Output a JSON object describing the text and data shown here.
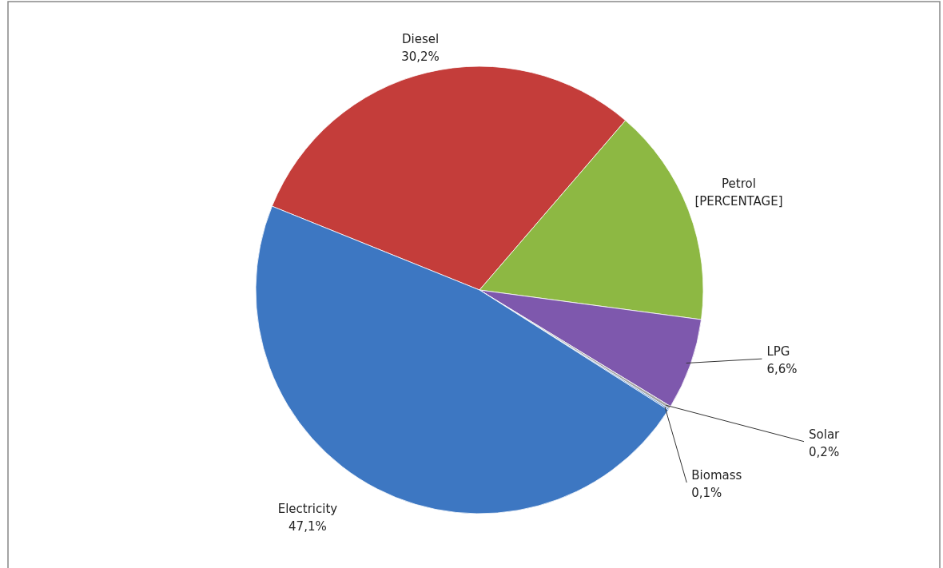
{
  "chart_data": {
    "type": "pie",
    "categories": [
      "Diesel",
      "Petrol",
      "LPG",
      "Solar",
      "Biomass",
      "Electricity"
    ],
    "values": [
      30.2,
      15.8,
      6.6,
      0.2,
      0.1,
      47.1
    ],
    "value_labels": [
      "30,2%",
      "[PERCENTAGE]",
      "6,6%",
      "0,2%",
      "0,1%",
      "47,1%"
    ],
    "colors": [
      "#c43d3a",
      "#8db843",
      "#7e58ad",
      "#a6a6a6",
      "#5b8fd0",
      "#3d77c2"
    ],
    "legend": false
  }
}
